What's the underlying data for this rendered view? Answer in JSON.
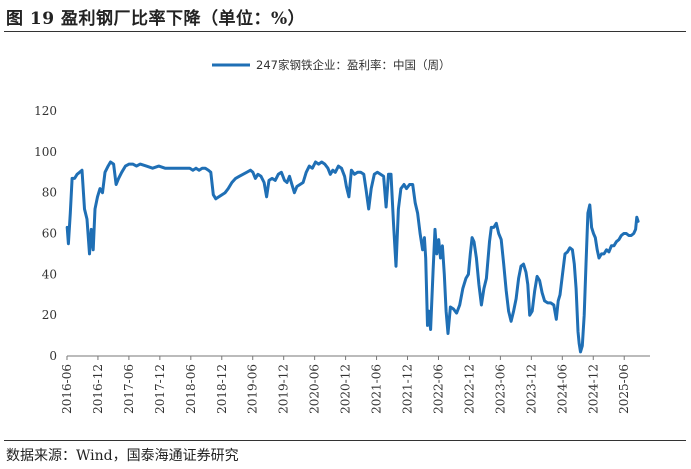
{
  "figure": {
    "title": "图 19 盈利钢厂比率下降（单位：%）",
    "source": "数据来源：Wind，国泰海通证券研究"
  },
  "chart_data": {
    "type": "line",
    "title": "图 19 盈利钢厂比率下降（单位：%）",
    "xlabel": "",
    "ylabel": "",
    "ylim": [
      0,
      120
    ],
    "yticks": [
      "0",
      "20",
      "40",
      "60",
      "80",
      "100",
      "120"
    ],
    "xlim": [
      2016.417,
      2025.833
    ],
    "xticks": [
      "2016-06",
      "2016-12",
      "2017-06",
      "2017-12",
      "2018-06",
      "2018-12",
      "2019-06",
      "2019-12",
      "2020-06",
      "2020-12",
      "2021-06",
      "2021-12",
      "2022-06",
      "2022-12",
      "2023-06",
      "2023-12",
      "2024-06",
      "2024-12",
      "2025-06"
    ],
    "legend_position": "top-center",
    "color": "#1f6fb5",
    "series": [
      {
        "name": "247家钢铁企业：盈利率：中国（周）",
        "points": [
          [
            2016.42,
            63
          ],
          [
            2016.44,
            55
          ],
          [
            2016.47,
            70
          ],
          [
            2016.5,
            87
          ],
          [
            2016.54,
            87
          ],
          [
            2016.58,
            89
          ],
          [
            2016.62,
            90
          ],
          [
            2016.66,
            91
          ],
          [
            2016.7,
            72
          ],
          [
            2016.74,
            67
          ],
          [
            2016.78,
            50
          ],
          [
            2016.81,
            62
          ],
          [
            2016.84,
            52
          ],
          [
            2016.87,
            72
          ],
          [
            2016.91,
            78
          ],
          [
            2016.95,
            82
          ],
          [
            2016.99,
            80
          ],
          [
            2017.03,
            90
          ],
          [
            2017.08,
            93
          ],
          [
            2017.12,
            95
          ],
          [
            2017.17,
            94
          ],
          [
            2017.21,
            84
          ],
          [
            2017.25,
            87
          ],
          [
            2017.3,
            90
          ],
          [
            2017.36,
            93
          ],
          [
            2017.42,
            94
          ],
          [
            2017.48,
            94
          ],
          [
            2017.54,
            93
          ],
          [
            2017.6,
            94
          ],
          [
            2017.7,
            93
          ],
          [
            2017.8,
            92
          ],
          [
            2017.9,
            93
          ],
          [
            2018.0,
            92
          ],
          [
            2018.1,
            92
          ],
          [
            2018.2,
            92
          ],
          [
            2018.3,
            92
          ],
          [
            2018.4,
            92
          ],
          [
            2018.45,
            91
          ],
          [
            2018.5,
            92
          ],
          [
            2018.55,
            91
          ],
          [
            2018.6,
            92
          ],
          [
            2018.65,
            92
          ],
          [
            2018.7,
            91
          ],
          [
            2018.74,
            90
          ],
          [
            2018.78,
            79
          ],
          [
            2018.82,
            77
          ],
          [
            2018.87,
            78
          ],
          [
            2018.92,
            79
          ],
          [
            2018.97,
            80
          ],
          [
            2019.02,
            82
          ],
          [
            2019.08,
            85
          ],
          [
            2019.14,
            87
          ],
          [
            2019.2,
            88
          ],
          [
            2019.26,
            89
          ],
          [
            2019.32,
            90
          ],
          [
            2019.38,
            91
          ],
          [
            2019.42,
            90
          ],
          [
            2019.46,
            87
          ],
          [
            2019.5,
            89
          ],
          [
            2019.55,
            88
          ],
          [
            2019.6,
            85
          ],
          [
            2019.64,
            78
          ],
          [
            2019.68,
            86
          ],
          [
            2019.73,
            87
          ],
          [
            2019.78,
            86
          ],
          [
            2019.83,
            89
          ],
          [
            2019.88,
            90
          ],
          [
            2019.93,
            86
          ],
          [
            2019.97,
            85
          ],
          [
            2020.01,
            88
          ],
          [
            2020.05,
            84
          ],
          [
            2020.09,
            80
          ],
          [
            2020.13,
            83
          ],
          [
            2020.18,
            84
          ],
          [
            2020.23,
            85
          ],
          [
            2020.28,
            90
          ],
          [
            2020.33,
            93
          ],
          [
            2020.38,
            92
          ],
          [
            2020.43,
            95
          ],
          [
            2020.48,
            94
          ],
          [
            2020.53,
            95
          ],
          [
            2020.58,
            94
          ],
          [
            2020.63,
            92
          ],
          [
            2020.67,
            89
          ],
          [
            2020.71,
            91
          ],
          [
            2020.75,
            90
          ],
          [
            2020.8,
            93
          ],
          [
            2020.85,
            92
          ],
          [
            2020.9,
            88
          ],
          [
            2020.93,
            83
          ],
          [
            2020.97,
            78
          ],
          [
            2021.01,
            91
          ],
          [
            2021.06,
            89
          ],
          [
            2021.11,
            90
          ],
          [
            2021.16,
            90
          ],
          [
            2021.21,
            89
          ],
          [
            2021.25,
            81
          ],
          [
            2021.29,
            72
          ],
          [
            2021.33,
            82
          ],
          [
            2021.38,
            89
          ],
          [
            2021.43,
            90
          ],
          [
            2021.48,
            89
          ],
          [
            2021.53,
            88
          ],
          [
            2021.57,
            73
          ],
          [
            2021.61,
            89
          ],
          [
            2021.65,
            89
          ],
          [
            2021.69,
            65
          ],
          [
            2021.73,
            44
          ],
          [
            2021.77,
            72
          ],
          [
            2021.81,
            82
          ],
          [
            2021.86,
            84
          ],
          [
            2021.9,
            82
          ],
          [
            2021.95,
            84
          ],
          [
            2022.0,
            84
          ],
          [
            2022.04,
            75
          ],
          [
            2022.08,
            70
          ],
          [
            2022.12,
            60
          ],
          [
            2022.16,
            52
          ],
          [
            2022.19,
            58
          ],
          [
            2022.21,
            48
          ],
          [
            2022.24,
            15
          ],
          [
            2022.26,
            22
          ],
          [
            2022.29,
            13
          ],
          [
            2022.33,
            42
          ],
          [
            2022.36,
            62
          ],
          [
            2022.39,
            50
          ],
          [
            2022.42,
            57
          ],
          [
            2022.45,
            48
          ],
          [
            2022.48,
            54
          ],
          [
            2022.51,
            40
          ],
          [
            2022.54,
            22
          ],
          [
            2022.57,
            11
          ],
          [
            2022.61,
            24
          ],
          [
            2022.66,
            23
          ],
          [
            2022.71,
            21
          ],
          [
            2022.76,
            25
          ],
          [
            2022.81,
            33
          ],
          [
            2022.86,
            38
          ],
          [
            2022.9,
            40
          ],
          [
            2022.93,
            50
          ],
          [
            2022.96,
            58
          ],
          [
            2022.99,
            56
          ],
          [
            2023.03,
            48
          ],
          [
            2023.07,
            35
          ],
          [
            2023.11,
            25
          ],
          [
            2023.15,
            33
          ],
          [
            2023.19,
            38
          ],
          [
            2023.24,
            56
          ],
          [
            2023.27,
            63
          ],
          [
            2023.31,
            63
          ],
          [
            2023.35,
            65
          ],
          [
            2023.39,
            60
          ],
          [
            2023.43,
            57
          ],
          [
            2023.47,
            45
          ],
          [
            2023.51,
            32
          ],
          [
            2023.55,
            22
          ],
          [
            2023.59,
            17
          ],
          [
            2023.63,
            22
          ],
          [
            2023.67,
            28
          ],
          [
            2023.71,
            38
          ],
          [
            2023.75,
            44
          ],
          [
            2023.79,
            45
          ],
          [
            2023.83,
            41
          ],
          [
            2023.86,
            35
          ],
          [
            2023.89,
            20
          ],
          [
            2023.93,
            22
          ],
          [
            2023.97,
            32
          ],
          [
            2024.01,
            39
          ],
          [
            2024.05,
            37
          ],
          [
            2024.09,
            31
          ],
          [
            2024.13,
            27
          ],
          [
            2024.18,
            26
          ],
          [
            2024.23,
            26
          ],
          [
            2024.28,
            25
          ],
          [
            2024.32,
            18
          ],
          [
            2024.35,
            27
          ],
          [
            2024.38,
            30
          ],
          [
            2024.42,
            40
          ],
          [
            2024.46,
            50
          ],
          [
            2024.5,
            51
          ],
          [
            2024.54,
            53
          ],
          [
            2024.58,
            52
          ],
          [
            2024.61,
            45
          ],
          [
            2024.64,
            33
          ],
          [
            2024.67,
            12
          ],
          [
            2024.69,
            6
          ],
          [
            2024.71,
            2
          ],
          [
            2024.74,
            5
          ],
          [
            2024.77,
            20
          ],
          [
            2024.8,
            45
          ],
          [
            2024.83,
            70
          ],
          [
            2024.86,
            74
          ],
          [
            2024.89,
            63
          ],
          [
            2024.92,
            60
          ],
          [
            2024.95,
            58
          ],
          [
            2024.98,
            52
          ],
          [
            2025.01,
            48
          ],
          [
            2025.05,
            50
          ],
          [
            2025.09,
            50
          ],
          [
            2025.13,
            52
          ],
          [
            2025.17,
            51
          ],
          [
            2025.21,
            54
          ],
          [
            2025.25,
            54
          ],
          [
            2025.29,
            56
          ],
          [
            2025.33,
            57
          ],
          [
            2025.37,
            59
          ],
          [
            2025.41,
            60
          ],
          [
            2025.45,
            60
          ],
          [
            2025.49,
            59
          ],
          [
            2025.53,
            59
          ],
          [
            2025.57,
            60
          ],
          [
            2025.6,
            62
          ],
          [
            2025.62,
            68
          ],
          [
            2025.64,
            66
          ]
        ]
      }
    ]
  }
}
